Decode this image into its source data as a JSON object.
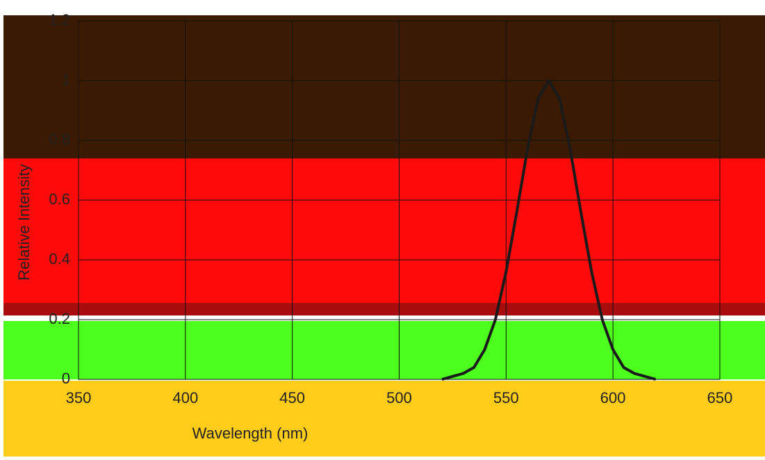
{
  "chart_data": {
    "type": "line",
    "y_label": "Relative Intensity",
    "x_label": "Wavelength (nm)",
    "x": [
      520,
      525,
      530,
      535,
      540,
      545,
      550,
      555,
      560,
      565,
      570,
      575,
      580,
      585,
      590,
      595,
      600,
      605,
      610,
      615,
      620
    ],
    "series": [
      {
        "name": "Spectrum",
        "color": "#1a1a1a",
        "values": [
          0.0,
          0.01,
          0.02,
          0.04,
          0.1,
          0.2,
          0.36,
          0.56,
          0.77,
          0.94,
          1,
          0.94,
          0.77,
          0.56,
          0.36,
          0.2,
          0.1,
          0.04,
          0.02,
          0.01,
          0.0
        ]
      }
    ],
    "xlim": [
      350,
      650
    ],
    "xticks": [
      350,
      400,
      450,
      500,
      550,
      600,
      650
    ],
    "ylim": [
      0,
      1.2
    ],
    "yticks": [
      0,
      0.2,
      0.4,
      0.6,
      0.8,
      1,
      1.2
    ],
    "grid": true
  }
}
